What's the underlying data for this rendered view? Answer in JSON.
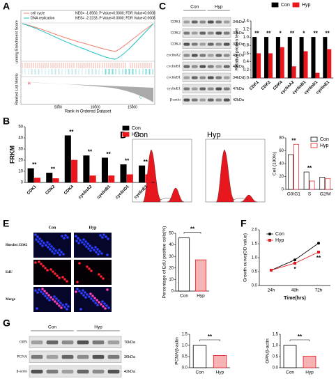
{
  "panel_letters": [
    "A",
    "B",
    "C",
    "D",
    "E",
    "F",
    "G"
  ],
  "gsea": {
    "legend": [
      {
        "name": "cell cycle",
        "stats": "NES= -1.8560; P Value=0.0000; FDR Value=0.0008"
      },
      {
        "name": "DNA replication",
        "stats": "NES= -2.2233; P Value=0.0000; FDR Value=0.0008"
      }
    ],
    "ylabel": "unning Enrichment Score",
    "metric_label": "Ranked List Metric",
    "xlabel": "Rank in Ordered Dataset",
    "xlim": [
      0,
      18000
    ],
    "xticks": [
      5000,
      10000,
      15000
    ],
    "markers": [
      "H",
      "C"
    ]
  },
  "blot_c": {
    "groups": [
      "Con",
      "Hyp"
    ],
    "rows": [
      {
        "protein": "CDK1",
        "size": "34kDa"
      },
      {
        "protein": "CDK2",
        "size": "33kDa"
      },
      {
        "protein": "CDK4",
        "size": "34kDa"
      },
      {
        "protein": "cyclinA2",
        "size": "49kDa"
      },
      {
        "protein": "cyclinB1",
        "size": "48kDa"
      },
      {
        "protein": "cyclinD1",
        "size": "34kDa"
      },
      {
        "protein": "cyclinE1",
        "size": "47kDa"
      },
      {
        "protein": "β-actin",
        "size": "42kDa"
      }
    ]
  },
  "flow": {
    "samples": [
      "Con",
      "Hyp"
    ]
  },
  "edu_images": {
    "columns": [
      "Con",
      "Hyp"
    ],
    "rows": [
      "Hoechst 33342",
      "EdU",
      "Merge"
    ]
  },
  "blot_g": {
    "groups": [
      "Con",
      "Hyp"
    ],
    "rows": [
      {
        "protein": "OPN",
        "size": "70kDa"
      },
      {
        "protein": "PCNA",
        "size": "36kDa"
      },
      {
        "protein": "β-actin",
        "size": "42kDa"
      }
    ]
  },
  "chart_data": [
    {
      "type": "bar",
      "ylabel": "FRKM",
      "categories": [
        "CDK1",
        "CDK2",
        "CDK4",
        "cyclinA2",
        "cyclinB1",
        "cyclinD1",
        "cyclinE1"
      ],
      "series": [
        {
          "name": "Con",
          "color": "#000000",
          "values": [
            12.5,
            8.5,
            42,
            24,
            22,
            16,
            15
          ]
        },
        {
          "name": "Hyp",
          "color": "#e8161d",
          "values": [
            4,
            3.5,
            20,
            6,
            6,
            7,
            7
          ]
        }
      ],
      "significance": [
        "**",
        "**",
        "**",
        "**",
        "**",
        "**",
        "**"
      ],
      "ylim": [
        0,
        50
      ],
      "yticks": [
        0,
        10,
        20,
        30,
        40,
        50
      ],
      "legend": "top-right"
    },
    {
      "type": "bar",
      "ylabel": "Relative protein level",
      "categories": [
        "CDK1",
        "CDK2",
        "CDK4",
        "cyclinA2",
        "cyclinB1",
        "cyclinD1",
        "cyclinE1"
      ],
      "series": [
        {
          "name": "Con",
          "color": "#000000",
          "values": [
            1.0,
            1.0,
            1.0,
            1.0,
            1.0,
            1.0,
            1.0
          ]
        },
        {
          "name": "Hyp",
          "color": "#e8161d",
          "values": [
            0.6,
            0.6,
            0.75,
            0.28,
            0.65,
            0.12,
            0.7
          ]
        }
      ],
      "significance": [
        "**",
        "**",
        "*",
        "**",
        "*",
        "**",
        "**"
      ],
      "ylim": [
        0,
        1.4
      ],
      "yticks": [
        {
          "value": 0,
          "label": "0.0"
        },
        0.2,
        0.4,
        0.6,
        0.8,
        {
          "value": 1,
          "label": "1.0"
        },
        1.2,
        1.4
      ],
      "legend": "top"
    },
    {
      "type": "bar",
      "ylabel": "Cell (100%)",
      "categories": [
        "G0/G1",
        "S",
        "G2/M"
      ],
      "series": [
        {
          "name": "Con",
          "color": "#000000",
          "fill": "#ffffff",
          "values": [
            54,
            27,
            19
          ]
        },
        {
          "name": "Hyp",
          "color": "#e8161d",
          "fill": "#ffffff",
          "values": [
            70,
            13,
            17
          ]
        }
      ],
      "significance": [
        "**",
        "**",
        null
      ],
      "ylim": [
        0,
        80
      ],
      "yticks": [
        0,
        20,
        40,
        60,
        80
      ],
      "legend": "top-right"
    },
    {
      "type": "bar",
      "ylabel": "Percentage of EdU positive cells(%)",
      "categories": [
        "Con",
        "Hyp"
      ],
      "values": [
        46,
        27
      ],
      "colors": [
        "#ffffff",
        "#f6b3b3"
      ],
      "edge_colors": [
        "#000000",
        "#e8161d"
      ],
      "significance": "**",
      "ylim": [
        0,
        50
      ],
      "yticks": [
        0,
        10,
        20,
        30,
        40,
        50
      ]
    },
    {
      "type": "line",
      "ylabel": "Growth curve(OD value)",
      "xlabel": "Time(hrs)",
      "categories": [
        "24h",
        "48h",
        "72h"
      ],
      "series": [
        {
          "name": "Con",
          "color": "#000000",
          "values": [
            0.55,
            0.92,
            1.52
          ]
        },
        {
          "name": "Hyp",
          "color": "#e8161d",
          "values": [
            0.55,
            0.8,
            1.2
          ]
        }
      ],
      "annotations": [
        null,
        "*",
        "**"
      ],
      "ylim": [
        0,
        2
      ],
      "yticks": [
        {
          "value": 0,
          "label": "0.0"
        },
        0.5,
        {
          "value": 1,
          "label": "1.0"
        },
        1.5,
        {
          "value": 2,
          "label": "2.0"
        }
      ],
      "legend": "top-left"
    },
    {
      "type": "bar",
      "ylabel": "PCNA/β-actin",
      "categories": [
        "Con",
        "Hyp"
      ],
      "values": [
        1.0,
        0.55
      ],
      "colors": [
        "#ffffff",
        "#f6b3b3"
      ],
      "edge_colors": [
        "#000000",
        "#e8161d"
      ],
      "significance": "**",
      "ylim": [
        0,
        1.5
      ],
      "yticks": [
        {
          "value": 0,
          "label": "0.0"
        },
        0.5,
        {
          "value": 1,
          "label": "1.0"
        },
        1.5
      ]
    },
    {
      "type": "bar",
      "ylabel": "OPN/β-actin",
      "categories": [
        "Con",
        "Hyp"
      ],
      "values": [
        1.0,
        0.52
      ],
      "colors": [
        "#ffffff",
        "#f6b3b3"
      ],
      "edge_colors": [
        "#000000",
        "#e8161d"
      ],
      "significance": "**",
      "ylim": [
        0,
        1.5
      ],
      "yticks": [
        {
          "value": 0,
          "label": "0.0"
        },
        0.5,
        {
          "value": 1,
          "label": "1.0"
        },
        1.5
      ]
    }
  ]
}
